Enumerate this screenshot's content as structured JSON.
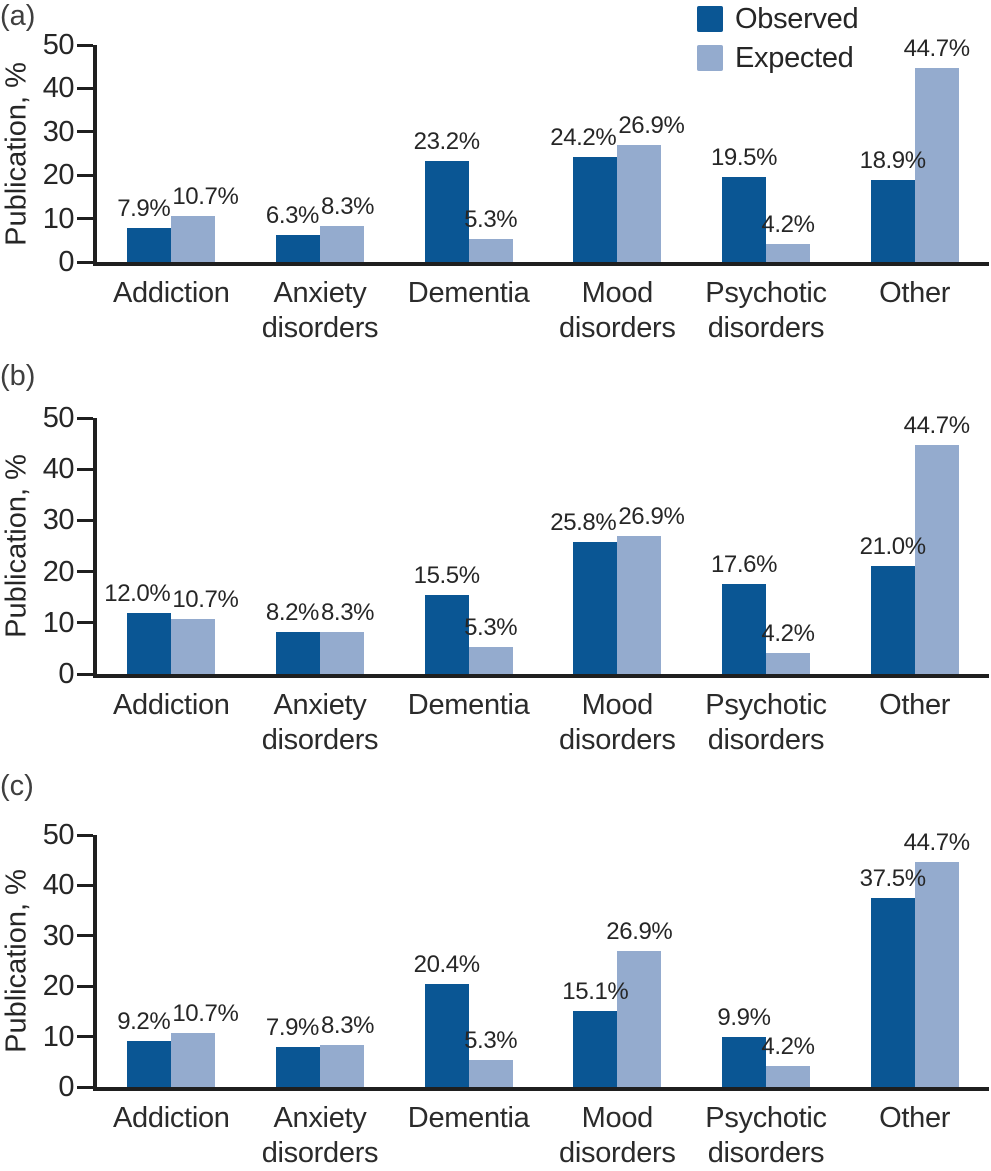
{
  "figure": {
    "type": "grouped-bar-figure",
    "background": "#ffffff",
    "panels": [
      "(a)",
      "(b)",
      "(c)"
    ]
  },
  "legend": {
    "position": "top-right",
    "items": [
      {
        "label": "Observed",
        "color": "#0a5694",
        "swatch": "square"
      },
      {
        "label": "Expected",
        "color": "#94abce",
        "swatch": "square"
      }
    ]
  },
  "chart_data": [
    {
      "type": "bar",
      "panel": "(a)",
      "title": "",
      "xlabel": "",
      "ylabel": "Publication, %",
      "ylim": [
        0,
        50
      ],
      "yticks": [
        50,
        40,
        30,
        20,
        10,
        0
      ],
      "grid": false,
      "legend_position": "top-right",
      "categories": [
        "Addiction",
        "Anxiety disorders",
        "Dementia",
        "Mood disorders",
        "Psychotic disorders",
        "Other"
      ],
      "category_lines": [
        [
          "Addiction"
        ],
        [
          "Anxiety",
          "disorders"
        ],
        [
          "Dementia"
        ],
        [
          "Mood",
          "disorders"
        ],
        [
          "Psychotic",
          "disorders"
        ],
        [
          "Other"
        ]
      ],
      "series": [
        {
          "name": "Observed",
          "color": "#0a5694",
          "values": [
            7.9,
            6.3,
            23.2,
            24.2,
            19.5,
            18.9
          ],
          "data_labels": [
            "7.9%",
            "6.3%",
            "23.2%",
            "24.2%",
            "19.5%",
            "18.9%"
          ]
        },
        {
          "name": "Expected",
          "color": "#94abce",
          "values": [
            10.7,
            8.3,
            5.3,
            26.9,
            4.2,
            44.7
          ],
          "data_labels": [
            "10.7%",
            "8.3%",
            "5.3%",
            "26.9%",
            "4.2%",
            "44.7%"
          ]
        }
      ]
    },
    {
      "type": "bar",
      "panel": "(b)",
      "title": "",
      "xlabel": "",
      "ylabel": "Publication, %",
      "ylim": [
        0,
        50
      ],
      "yticks": [
        50,
        40,
        30,
        20,
        10,
        0
      ],
      "grid": false,
      "categories": [
        "Addiction",
        "Anxiety disorders",
        "Dementia",
        "Mood disorders",
        "Psychotic disorders",
        "Other"
      ],
      "category_lines": [
        [
          "Addiction"
        ],
        [
          "Anxiety",
          "disorders"
        ],
        [
          "Dementia"
        ],
        [
          "Mood",
          "disorders"
        ],
        [
          "Psychotic",
          "disorders"
        ],
        [
          "Other"
        ]
      ],
      "series": [
        {
          "name": "Observed",
          "color": "#0a5694",
          "values": [
            12.0,
            8.2,
            15.5,
            25.8,
            17.6,
            21.0
          ],
          "data_labels": [
            "12.0%",
            "8.2%",
            "15.5%",
            "25.8%",
            "17.6%",
            "21.0%"
          ]
        },
        {
          "name": "Expected",
          "color": "#94abce",
          "values": [
            10.7,
            8.3,
            5.3,
            26.9,
            4.2,
            44.7
          ],
          "data_labels": [
            "10.7%",
            "8.3%",
            "5.3%",
            "26.9%",
            "4.2%",
            "44.7%"
          ]
        }
      ]
    },
    {
      "type": "bar",
      "panel": "(c)",
      "title": "",
      "xlabel": "",
      "ylabel": "Publication, %",
      "ylim": [
        0,
        50
      ],
      "yticks": [
        50,
        40,
        30,
        20,
        10,
        0
      ],
      "grid": false,
      "categories": [
        "Addiction",
        "Anxiety disorders",
        "Dementia",
        "Mood disorders",
        "Psychotic disorders",
        "Other"
      ],
      "category_lines": [
        [
          "Addiction"
        ],
        [
          "Anxiety",
          "disorders"
        ],
        [
          "Dementia"
        ],
        [
          "Mood",
          "disorders"
        ],
        [
          "Psychotic",
          "disorders"
        ],
        [
          "Other"
        ]
      ],
      "series": [
        {
          "name": "Observed",
          "color": "#0a5694",
          "values": [
            9.2,
            7.9,
            20.4,
            15.1,
            9.9,
            37.5
          ],
          "data_labels": [
            "9.2%",
            "7.9%",
            "20.4%",
            "15.1%",
            "9.9%",
            "37.5%"
          ]
        },
        {
          "name": "Expected",
          "color": "#94abce",
          "values": [
            10.7,
            8.3,
            5.3,
            26.9,
            4.2,
            44.7
          ],
          "data_labels": [
            "10.7%",
            "8.3%",
            "5.3%",
            "26.9%",
            "4.2%",
            "44.7%"
          ]
        }
      ]
    }
  ]
}
